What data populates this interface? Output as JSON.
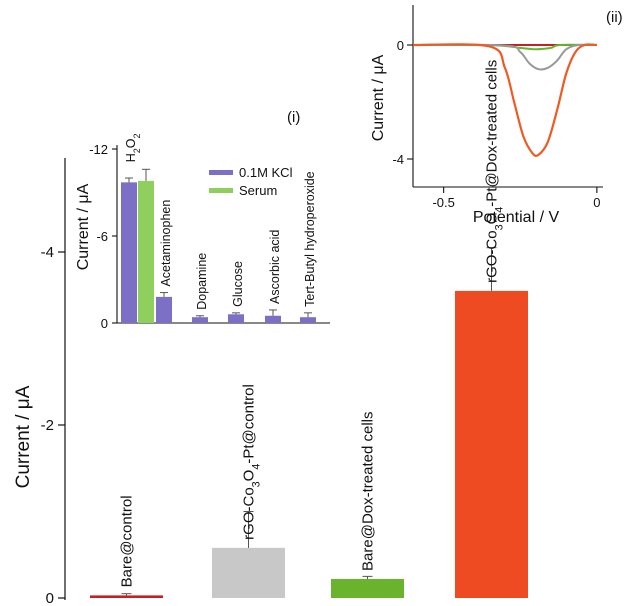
{
  "chart_data": [
    {
      "type": "bar",
      "ylabel": "Current / μA",
      "yticks": [
        "0",
        "-2",
        "-4"
      ],
      "ylim": [
        0,
        -5.8
      ],
      "categories": [
        "Bare@control",
        "rGO-Co3O4-Pt@control",
        "Bare@Dox-treated cells",
        "rGO-Co3O4-Pt@Dox-treated cells"
      ],
      "label_parts": [
        [
          "Bare@control",
          "",
          "",
          "",
          ""
        ],
        [
          "rGO-Co",
          "3",
          "O",
          "4",
          "-Pt@control"
        ],
        [
          "Bare@Dox-treated cells",
          "",
          "",
          "",
          ""
        ],
        [
          "rGO-Co",
          "3",
          "O",
          "4",
          "-Pt@Dox-treated cells"
        ]
      ],
      "values": [
        -0.03,
        -0.58,
        -0.22,
        -3.55
      ],
      "errors": [
        0.02,
        0.42,
        0.03,
        0.5
      ],
      "colors": [
        "#c42026",
        "#c8c8c8",
        "#6ab42d",
        "#ef4b23"
      ]
    },
    {
      "type": "bar",
      "panel": "(i)",
      "ylabel": "Current / μA",
      "yticks": [
        "0",
        "-6",
        "-12"
      ],
      "ylim": [
        0,
        -12
      ],
      "categories": [
        "H2O2",
        "Acetaminophen",
        "Dopamine",
        "Glucose",
        "Ascorbic acid",
        "Tert-Butyl hydroperoxide"
      ],
      "label_parts": [
        [
          "H",
          "2",
          "O",
          "2",
          ""
        ],
        [
          "Acetaminophen",
          "",
          "",
          "",
          ""
        ],
        [
          "Dopamine",
          "",
          "",
          "",
          ""
        ],
        [
          "Glucose",
          "",
          "",
          "",
          ""
        ],
        [
          "Ascorbic acid",
          "",
          "",
          "",
          ""
        ],
        [
          "Tert-Butyl hydroperoxide",
          "",
          "",
          "",
          ""
        ]
      ],
      "series": [
        {
          "name": "0.1M KCl",
          "color": "#7b6fc6",
          "values": [
            -9.7,
            -1.8,
            -0.4,
            -0.6,
            -0.5,
            -0.4
          ],
          "errors": [
            0.3,
            0.3,
            0.1,
            0.1,
            0.4,
            0.3
          ]
        },
        {
          "name": "Serum",
          "color": "#8fcf5e",
          "values": [
            -9.8,
            null,
            null,
            null,
            null,
            null
          ],
          "errors": [
            0.8,
            null,
            null,
            null,
            null,
            null
          ]
        }
      ]
    },
    {
      "type": "line",
      "panel": "(ii)",
      "xlabel": "Potential / V",
      "ylabel": "Current / μA",
      "xticks": [
        "-0.5",
        "0"
      ],
      "yticks": [
        "0",
        "-4"
      ],
      "xlim": [
        -0.6,
        0.02
      ],
      "ylim": [
        -4.65,
        0.2
      ],
      "series": [
        {
          "color": "#c42026",
          "x": [
            -0.6,
            -0.45,
            -0.3,
            -0.2,
            -0.1,
            0.0
          ],
          "y": [
            0.0,
            0.0,
            0.0,
            0.0,
            0.0,
            0.0
          ]
        },
        {
          "color": "#6ab42d",
          "x": [
            -0.6,
            -0.35,
            -0.25,
            -0.2,
            -0.15,
            -0.12,
            0.0
          ],
          "y": [
            0.0,
            0.0,
            -0.1,
            -0.15,
            -0.1,
            0.0,
            0.0
          ]
        },
        {
          "color": "#999999",
          "x": [
            -0.6,
            -0.3,
            -0.25,
            -0.22,
            -0.19,
            -0.16,
            -0.13,
            -0.1,
            -0.06,
            0.0
          ],
          "y": [
            0.0,
            -0.02,
            -0.25,
            -0.65,
            -0.85,
            -0.8,
            -0.55,
            -0.15,
            0.0,
            0.0
          ]
        },
        {
          "color": "#ef5a24",
          "x": [
            -0.6,
            -0.35,
            -0.3,
            -0.27,
            -0.24,
            -0.21,
            -0.19,
            -0.16,
            -0.13,
            -0.1,
            -0.07,
            -0.04,
            0.0
          ],
          "y": [
            0.0,
            -0.05,
            -0.8,
            -2.0,
            -3.2,
            -3.8,
            -3.85,
            -3.4,
            -2.3,
            -1.0,
            -0.25,
            0.0,
            0.0
          ]
        }
      ]
    }
  ]
}
